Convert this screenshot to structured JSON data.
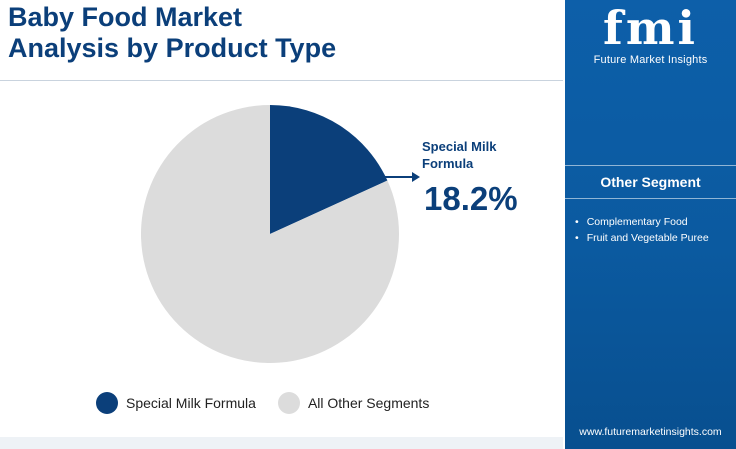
{
  "header": {
    "title_line1": "Baby Food Market",
    "title_line2": "Analysis by Product Type"
  },
  "chart_data": {
    "type": "pie",
    "slices": [
      {
        "name": "Special Milk Formula",
        "value": 18.2,
        "color": "#0b3f7a"
      },
      {
        "name": "All Other Segments",
        "value": 81.8,
        "color": "#dcdcdc"
      }
    ],
    "callout": {
      "label": "Special Milk Formula",
      "value_text": "18.2%"
    },
    "legend": {
      "placement": "bottom",
      "items": [
        {
          "label": "Special Milk Formula",
          "color": "#0b3f7a"
        },
        {
          "label": "All Other Segments",
          "color": "#dcdcdc"
        }
      ]
    }
  },
  "side_panel": {
    "logo_text": "fmi",
    "logo_subtitle": "Future Market Insights",
    "segment_heading": "Other Segment",
    "segments": [
      "Complementary Food",
      "Fruit and Vegetable Puree"
    ],
    "website": "www.futuremarketinsights.com",
    "background_color": "#0d5ea8"
  }
}
